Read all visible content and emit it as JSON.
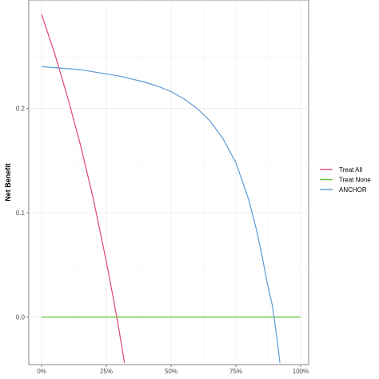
{
  "chart_data": {
    "type": "line",
    "title": "",
    "xlabel": "",
    "ylabel": "Net Benefit",
    "xlim": [
      0,
      100
    ],
    "ylim": [
      -0.035,
      0.3
    ],
    "x_ticks": [
      0,
      25,
      50,
      75,
      100
    ],
    "x_tick_labels": [
      "0%",
      "25%",
      "50%",
      "75%",
      "100%"
    ],
    "y_ticks": [
      0.0,
      0.1,
      0.2
    ],
    "y_tick_labels": [
      "0.0",
      "0.1",
      "0.2"
    ],
    "grid": true,
    "legend_position": "right",
    "series": [
      {
        "name": "Treat All",
        "color": "#e0457b",
        "x": [
          0,
          5,
          10,
          15,
          20,
          25,
          28,
          30,
          32
        ],
        "y": [
          0.29,
          0.253,
          0.211,
          0.165,
          0.113,
          0.053,
          0.014,
          -0.014,
          -0.044
        ]
      },
      {
        "name": "Treat None",
        "color": "#56c02e",
        "x": [
          0,
          100
        ],
        "y": [
          0,
          0
        ]
      },
      {
        "name": "ANCHOR",
        "color": "#5b9bd5",
        "x": [
          0,
          5,
          10,
          15,
          20,
          25,
          30,
          35,
          40,
          45,
          50,
          55,
          60,
          65,
          70,
          75,
          80,
          83,
          85,
          87,
          89,
          90,
          91,
          92
        ],
        "y": [
          0.24,
          0.239,
          0.238,
          0.237,
          0.235,
          0.233,
          0.231,
          0.228,
          0.225,
          0.221,
          0.216,
          0.209,
          0.2,
          0.188,
          0.171,
          0.148,
          0.112,
          0.083,
          0.06,
          0.034,
          0.012,
          -0.005,
          -0.023,
          -0.044
        ]
      }
    ]
  }
}
